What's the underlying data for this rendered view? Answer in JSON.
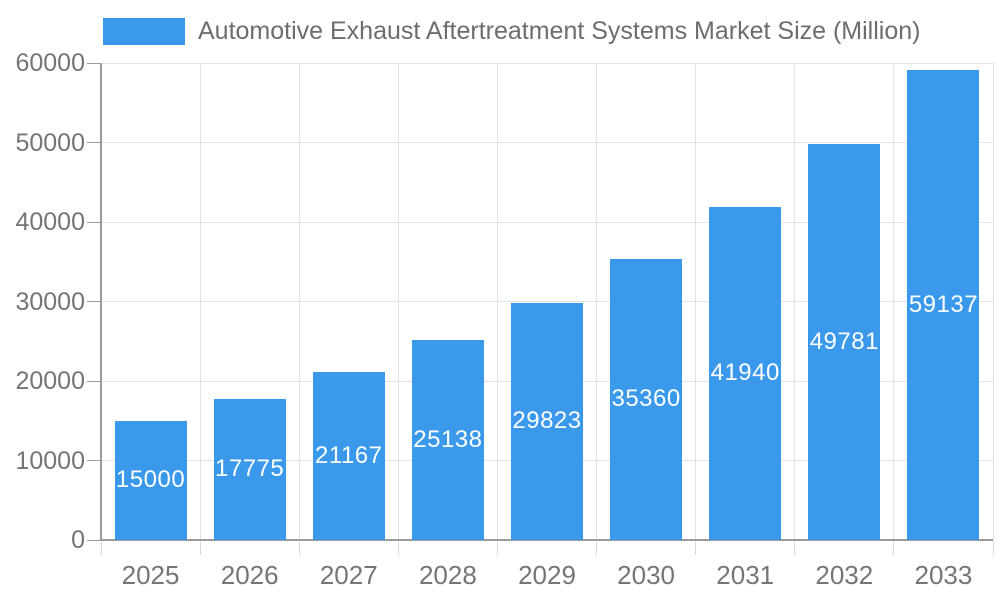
{
  "legend": {
    "swatch_icon": "legend-color-swatch"
  },
  "chart_data": {
    "type": "bar",
    "title": "Automotive Exhaust Aftertreatment Systems Market Size (Million)",
    "series_name": "Automotive Exhaust Aftertreatment Systems Market Size (Million)",
    "categories": [
      "2025",
      "2026",
      "2027",
      "2028",
      "2029",
      "2030",
      "2031",
      "2032",
      "2033"
    ],
    "values": [
      15000,
      17775,
      21167,
      25138,
      29823,
      35360,
      41940,
      49781,
      59137
    ],
    "value_labels_shown": [
      "15000",
      "17775",
      "21167",
      "25138",
      "29823",
      "35360",
      "41940",
      "49781",
      "59137"
    ],
    "xlabel": "",
    "ylabel": "",
    "ylim": [
      0,
      60000
    ],
    "yticks": [
      0,
      10000,
      20000,
      30000,
      40000,
      50000,
      60000
    ],
    "ytick_labels": [
      "0",
      "10000",
      "20000",
      "30000",
      "40000",
      "50000",
      "60000"
    ],
    "grid": true,
    "legend_position": "top-left",
    "value_label_position": "inside-center"
  },
  "colors": {
    "bar": "#3B99EC",
    "value_label": "#ffffff",
    "axis_text": "#757575",
    "legend_text": "#6d6d6d",
    "grid_line": "#e3e3e3",
    "axis_line": "#9a9a9a",
    "x_tick": "#d9d9d9",
    "background": "#ffffff"
  }
}
